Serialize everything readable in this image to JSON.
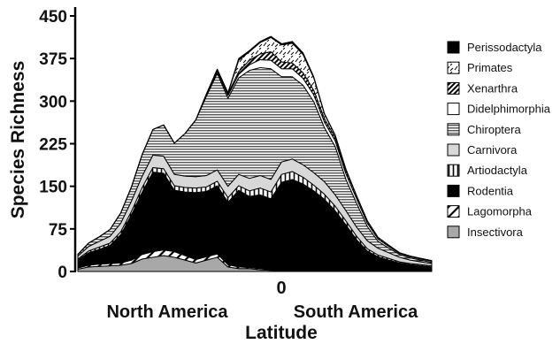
{
  "chart_data": {
    "type": "area",
    "stacked": true,
    "ylabel": "Species Richness",
    "xlabel": "Latitude",
    "x_center_label": "0",
    "region_labels": [
      "North America",
      "South America"
    ],
    "ylim": [
      0,
      450
    ],
    "yticks": [
      "0",
      "75",
      "150",
      "225",
      "300",
      "375",
      "450"
    ],
    "ytick_values": [
      0,
      75,
      150,
      225,
      300,
      375,
      450
    ],
    "x": [
      0,
      1,
      2,
      3,
      4,
      5,
      6,
      7,
      8,
      9,
      10,
      11,
      12,
      13,
      14,
      15,
      16,
      17,
      18,
      19,
      20,
      21,
      22,
      23,
      24,
      25,
      26,
      27,
      28,
      29,
      30,
      31,
      32,
      33
    ],
    "legend_position": "right",
    "series": [
      {
        "name": "Insectivora",
        "pattern": "solid-gray",
        "color": "#a8a8a8",
        "values": [
          4,
          8,
          9,
          10,
          11,
          14,
          22,
          25,
          28,
          25,
          20,
          15,
          20,
          25,
          8,
          5,
          5,
          3,
          2,
          1,
          1,
          1,
          1,
          1,
          1,
          1,
          0,
          0,
          0,
          0,
          0,
          0,
          0,
          0
        ]
      },
      {
        "name": "Lagomorpha",
        "pattern": "diag-light",
        "color": "#ffffff",
        "values": [
          2,
          3,
          4,
          4,
          4,
          6,
          8,
          10,
          10,
          10,
          8,
          6,
          6,
          6,
          4,
          3,
          2,
          2,
          1,
          1,
          1,
          1,
          1,
          1,
          1,
          1,
          1,
          1,
          1,
          0,
          0,
          0,
          0,
          0
        ]
      },
      {
        "name": "Rodentia",
        "pattern": "solid-black",
        "color": "#000000",
        "values": [
          14,
          22,
          26,
          32,
          50,
          80,
          110,
          140,
          135,
          108,
          112,
          118,
          115,
          120,
          110,
          135,
          125,
          130,
          125,
          155,
          160,
          152,
          140,
          125,
          105,
          80,
          55,
          35,
          25,
          20,
          15,
          12,
          10,
          8
        ]
      },
      {
        "name": "Artiodactyla",
        "pattern": "vertical",
        "color": "#ffffff",
        "values": [
          2,
          3,
          4,
          4,
          5,
          6,
          8,
          8,
          8,
          8,
          8,
          8,
          8,
          8,
          8,
          8,
          10,
          12,
          12,
          14,
          14,
          12,
          10,
          9,
          8,
          7,
          6,
          4,
          3,
          3,
          2,
          2,
          2,
          2
        ]
      },
      {
        "name": "Carnivora",
        "pattern": "solid-light",
        "color": "#d8d8d8",
        "values": [
          5,
          8,
          10,
          12,
          15,
          18,
          20,
          22,
          22,
          20,
          20,
          20,
          20,
          20,
          20,
          20,
          22,
          22,
          22,
          22,
          22,
          22,
          22,
          22,
          20,
          18,
          16,
          14,
          12,
          10,
          8,
          6,
          5,
          4
        ]
      },
      {
        "name": "Chiroptera",
        "pattern": "horizontal",
        "color": "#ffffff",
        "values": [
          3,
          6,
          8,
          12,
          18,
          25,
          38,
          45,
          55,
          55,
          75,
          100,
          140,
          170,
          155,
          170,
          190,
          190,
          195,
          150,
          145,
          140,
          125,
          95,
          85,
          55,
          42,
          25,
          12,
          8,
          5,
          4,
          3,
          2
        ]
      },
      {
        "name": "Didelphimorphia",
        "pattern": "solid-white",
        "color": "#ffffff",
        "values": [
          0,
          0,
          0,
          0,
          0,
          0,
          0,
          0,
          0,
          0,
          0,
          0,
          2,
          4,
          5,
          6,
          10,
          14,
          15,
          14,
          14,
          12,
          12,
          10,
          10,
          10,
          8,
          6,
          4,
          3,
          2,
          2,
          2,
          2
        ]
      },
      {
        "name": "Xenarthra",
        "pattern": "diag-dense",
        "color": "#333333",
        "values": [
          0,
          0,
          0,
          0,
          0,
          0,
          0,
          0,
          0,
          0,
          0,
          0,
          2,
          3,
          3,
          5,
          8,
          10,
          15,
          12,
          10,
          10,
          8,
          6,
          6,
          6,
          5,
          4,
          3,
          2,
          1,
          1,
          1,
          1
        ]
      },
      {
        "name": "Primates",
        "pattern": "dashes",
        "color": "#ffffff",
        "values": [
          0,
          0,
          0,
          0,
          0,
          0,
          0,
          0,
          0,
          0,
          0,
          0,
          0,
          0,
          1,
          20,
          15,
          20,
          25,
          30,
          35,
          32,
          22,
          8,
          4,
          2,
          0,
          0,
          0,
          0,
          0,
          0,
          0,
          0
        ]
      },
      {
        "name": "Perissodactyla",
        "pattern": "solid-black",
        "color": "#000000",
        "values": [
          0,
          0,
          0,
          0,
          0,
          0,
          0,
          0,
          0,
          0,
          0,
          0,
          0,
          0,
          1,
          3,
          2,
          2,
          2,
          2,
          3,
          3,
          2,
          1,
          0,
          0,
          0,
          0,
          0,
          0,
          0,
          0,
          0,
          0
        ]
      }
    ],
    "legend_order": [
      "Perissodactyla",
      "Primates",
      "Xenarthra",
      "Didelphimorphia",
      "Chiroptera",
      "Carnivora",
      "Artiodactyla",
      "Rodentia",
      "Lagomorpha",
      "Insectivora"
    ],
    "grid": false
  }
}
